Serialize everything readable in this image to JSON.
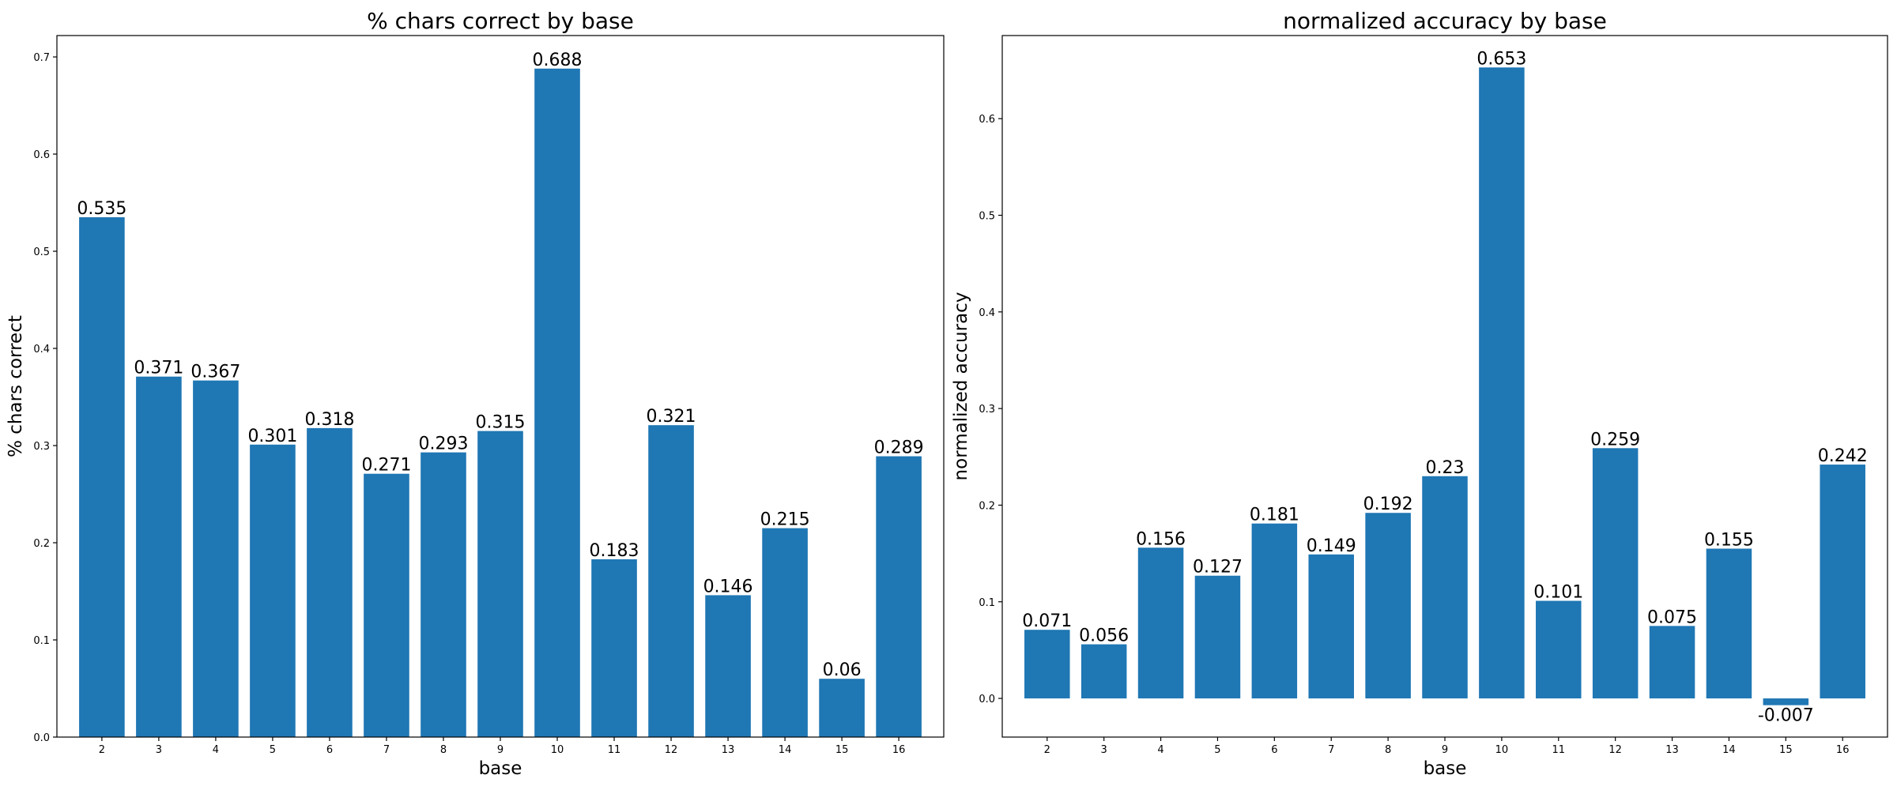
{
  "chart_data": [
    {
      "type": "bar",
      "title": "% chars correct by base",
      "xlabel": "base",
      "ylabel": "% chars correct",
      "categories": [
        "2",
        "3",
        "4",
        "5",
        "6",
        "7",
        "8",
        "9",
        "10",
        "11",
        "12",
        "13",
        "14",
        "15",
        "16"
      ],
      "values": [
        0.535,
        0.371,
        0.367,
        0.301,
        0.318,
        0.271,
        0.293,
        0.315,
        0.688,
        0.183,
        0.321,
        0.146,
        0.215,
        0.06,
        0.289
      ],
      "data_labels": [
        "0.535",
        "0.371",
        "0.367",
        "0.301",
        "0.318",
        "0.271",
        "0.293",
        "0.315",
        "0.688",
        "0.183",
        "0.321",
        "0.146",
        "0.215",
        "0.06",
        "0.289"
      ],
      "yticks": [
        0.0,
        0.1,
        0.2,
        0.3,
        0.4,
        0.5,
        0.6,
        0.7
      ],
      "ytick_labels": [
        "0.0",
        "0.1",
        "0.2",
        "0.3",
        "0.4",
        "0.5",
        "0.6",
        "0.7"
      ],
      "ylim": [
        0,
        0.722
      ],
      "grid": false,
      "bar_color": "#1f77b4"
    },
    {
      "type": "bar",
      "title": "normalized accuracy by base",
      "xlabel": "base",
      "ylabel": "normalized accuracy",
      "categories": [
        "2",
        "3",
        "4",
        "5",
        "6",
        "7",
        "8",
        "9",
        "10",
        "11",
        "12",
        "13",
        "14",
        "15",
        "16"
      ],
      "values": [
        0.071,
        0.056,
        0.156,
        0.127,
        0.181,
        0.149,
        0.192,
        0.23,
        0.653,
        0.101,
        0.259,
        0.075,
        0.155,
        -0.007,
        0.242
      ],
      "data_labels": [
        "0.071",
        "0.056",
        "0.156",
        "0.127",
        "0.181",
        "0.149",
        "0.192",
        "0.23",
        "0.653",
        "0.101",
        "0.259",
        "0.075",
        "0.155",
        "-0.007",
        "0.242"
      ],
      "yticks": [
        0.0,
        0.1,
        0.2,
        0.3,
        0.4,
        0.5,
        0.6
      ],
      "ytick_labels": [
        "0.0",
        "0.1",
        "0.2",
        "0.3",
        "0.4",
        "0.5",
        "0.6"
      ],
      "ylim": [
        -0.04,
        0.686
      ],
      "grid": false,
      "bar_color": "#1f77b4"
    }
  ]
}
